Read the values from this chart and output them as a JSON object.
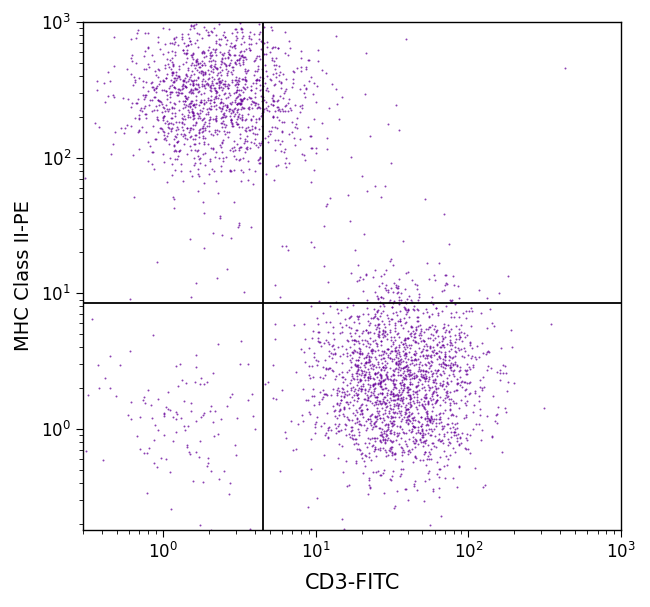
{
  "dot_color": "#660099",
  "dot_alpha": 0.75,
  "dot_size": 2.0,
  "background_color": "#ffffff",
  "xlabel": "CD3-FITC",
  "ylabel": "MHC Class II-PE",
  "xmin": 0.3,
  "xmax": 1000,
  "ymin": 0.18,
  "ymax": 1000,
  "quadrant_x": 4.5,
  "quadrant_y": 8.5,
  "cluster1": {
    "n": 1400,
    "x_center_log": 0.35,
    "y_center_log": 2.45,
    "x_spread": 0.3,
    "y_spread": 0.28
  },
  "cluster2": {
    "n": 2000,
    "x_center_log": 1.55,
    "y_center_log": 0.35,
    "x_spread": 0.28,
    "y_spread": 0.35
  },
  "scatter_bl": {
    "n": 120,
    "x_center_log": 0.1,
    "y_center_log": 0.05,
    "x_spread": 0.3,
    "y_spread": 0.3
  },
  "scatter_ur": {
    "n": 25,
    "x_center_log": 1.3,
    "y_center_log": 1.7,
    "x_spread": 0.5,
    "y_spread": 0.55
  },
  "scatter_ul_sparse": {
    "n": 30,
    "x_center_log": 0.55,
    "y_center_log": 1.2,
    "x_spread": 0.4,
    "y_spread": 0.5
  },
  "xlabel_fontsize": 15,
  "ylabel_fontsize": 14,
  "tick_fontsize": 12
}
